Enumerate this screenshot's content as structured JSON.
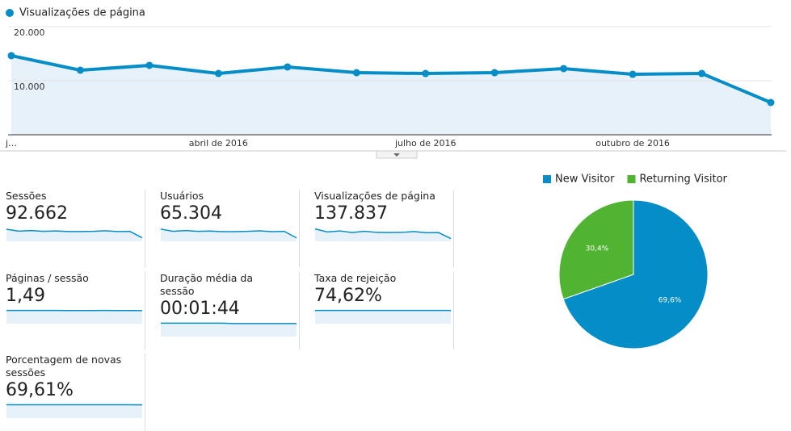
{
  "chart_data": [
    {
      "type": "line",
      "categories": [
        "j…",
        null,
        null,
        "abril de 2016",
        null,
        null,
        "julho de 2016",
        null,
        null,
        "outubro de 2016",
        null,
        null
      ],
      "series": [
        {
          "name": "Visualizações de página",
          "color": "#058dc7",
          "values": [
            14630,
            11940,
            12840,
            11340,
            12540,
            11490,
            11340,
            11490,
            12240,
            11190,
            11340,
            5970
          ]
        }
      ],
      "ylim": [
        0,
        20000
      ],
      "yticks": [
        {
          "value": 10000,
          "label": "10.000"
        },
        {
          "value": 20000,
          "label": "20.000"
        }
      ],
      "grid": true
    },
    {
      "type": "pie",
      "categories": [
        "New Visitor",
        "Returning Visitor"
      ],
      "values": [
        69.6,
        30.4
      ],
      "value_labels": [
        "69,6%",
        "30,4%"
      ],
      "colors": [
        "#058dc7",
        "#50b432"
      ],
      "legend": "top"
    }
  ],
  "metrics": [
    {
      "label": "Sessões",
      "value": "92.662",
      "sparkline": {
        "values": [
          8600,
          7600,
          7900,
          7500,
          7700,
          7400,
          7400,
          7500,
          7800,
          7400,
          7500,
          4300
        ],
        "ylim": [
          2500,
          9800
        ]
      }
    },
    {
      "label": "Usuários",
      "value": "65.304",
      "sparkline": {
        "values": [
          6100,
          5300,
          5600,
          5300,
          5400,
          5200,
          5200,
          5300,
          5500,
          5200,
          5300,
          3000
        ],
        "ylim": [
          1800,
          6900
        ]
      }
    },
    {
      "label": "Visualizações de página",
      "value": "137.837",
      "sparkline": {
        "values": [
          14630,
          11940,
          12840,
          11340,
          12540,
          11490,
          11340,
          11490,
          12240,
          11190,
          11340,
          5970
        ],
        "ylim": [
          3500,
          16500
        ]
      }
    },
    {
      "label": "Páginas / sessão",
      "value": "1,49",
      "sparkline": {
        "values": [
          1.5,
          1.5,
          1.5,
          1.5,
          1.5,
          1.49,
          1.49,
          1.49,
          1.5,
          1.49,
          1.49,
          1.48
        ],
        "ylim": [
          0,
          1.65
        ]
      }
    },
    {
      "label": "Duração média da sessão",
      "value": "00:01:44",
      "sparkline": {
        "values": [
          106,
          106,
          106,
          106,
          106,
          106,
          103,
          103,
          103,
          103,
          103,
          103
        ],
        "ylim": [
          0,
          115
        ]
      }
    },
    {
      "label": "Taxa de rejeição",
      "value": "74,62%",
      "sparkline": {
        "values": [
          74.6,
          74.6,
          74.6,
          74.6,
          74.6,
          74.6,
          74.6,
          74.6,
          74.6,
          74.6,
          74.6,
          74.6
        ],
        "ylim": [
          0,
          82
        ]
      }
    },
    {
      "label": "Porcentagem de novas sessões",
      "value": "69,61%",
      "sparkline": {
        "values": [
          69.5,
          69.7,
          69.6,
          69.6,
          69.7,
          69.6,
          69.6,
          69.7,
          69.6,
          69.6,
          69.6,
          69.3
        ],
        "ylim": [
          0,
          76
        ]
      }
    }
  ]
}
